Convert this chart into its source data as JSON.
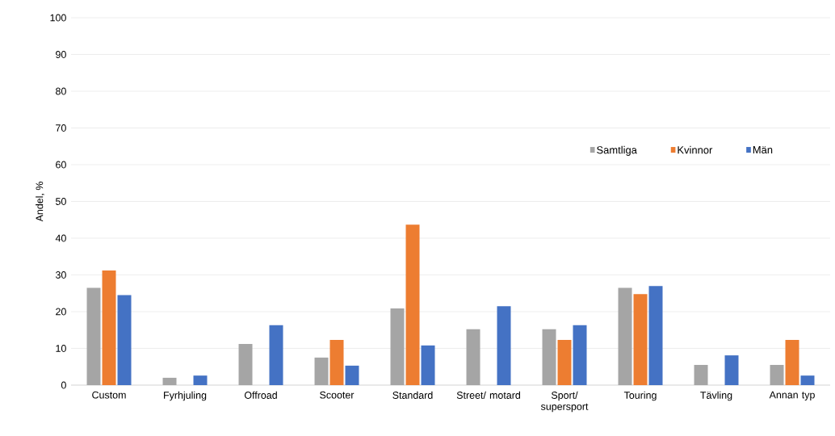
{
  "chart_data": {
    "type": "bar",
    "ylabel": "Andel, %",
    "categories": [
      "Custom",
      "Fyrhjuling",
      "Offroad",
      "Scooter",
      "Standard",
      "Street/ motard",
      "Sport/ supersport",
      "Touring",
      "Tävling",
      "Annan typ"
    ],
    "series": [
      {
        "name": "Samtliga",
        "color": "#a5a5a5",
        "values": [
          26.5,
          2.0,
          11.2,
          7.5,
          20.9,
          15.2,
          15.2,
          26.5,
          5.5,
          5.5
        ]
      },
      {
        "name": "Kvinnor",
        "color": "#ed7d31",
        "values": [
          31.2,
          null,
          null,
          12.3,
          43.7,
          null,
          12.3,
          24.8,
          null,
          12.3
        ]
      },
      {
        "name": "Män",
        "color": "#4472c4",
        "values": [
          24.5,
          2.6,
          16.3,
          5.3,
          10.8,
          21.5,
          16.3,
          27.0,
          8.1,
          2.6
        ]
      }
    ],
    "ylim": [
      0,
      100
    ],
    "yticks": [
      0,
      10,
      20,
      30,
      40,
      50,
      60,
      70,
      80,
      90,
      100
    ],
    "grid": "y",
    "legend": "top right"
  }
}
